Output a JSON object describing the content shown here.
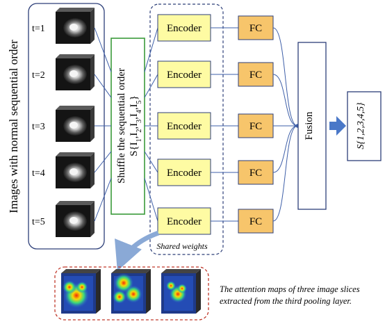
{
  "left_panel": {
    "vertical_label": "Images with normal sequential order",
    "frames": [
      {
        "label": "t=1"
      },
      {
        "label": "t=2"
      },
      {
        "label": "t=3"
      },
      {
        "label": "t=4"
      },
      {
        "label": "t=5"
      }
    ]
  },
  "shuffle_box": {
    "line1": "Shuffle the sequential order",
    "line2_prefix": "S{I",
    "line2_subs": [
      "1",
      "2",
      "3",
      "4",
      "5"
    ],
    "line2_sep": ",I",
    "line2_suffix": "}"
  },
  "encoders": {
    "labels": [
      "Encoder",
      "Encoder",
      "Encoder",
      "Encoder",
      "Encoder"
    ],
    "group_caption": "Shared weights"
  },
  "fc_layers": {
    "labels": [
      "FC",
      "FC",
      "FC",
      "FC",
      "FC"
    ]
  },
  "fusion": {
    "label": "Fusion"
  },
  "output": {
    "label": "S{1,2,3,4,5}"
  },
  "attention": {
    "caption_line1": "The attention maps of three image slices",
    "caption_line2": "extracted from the third pooling layer."
  },
  "colors": {
    "encoder_fill": "#fefba3",
    "fc_fill": "#f7c56b",
    "panel_border": "#2c3e78",
    "shuffle_border": "#3a9a3a",
    "attention_border": "#c0392b",
    "arrow_blue": "#4a78c8",
    "line_blue": "#3e5fa8",
    "curved_arrow": "#8aa9d6"
  }
}
